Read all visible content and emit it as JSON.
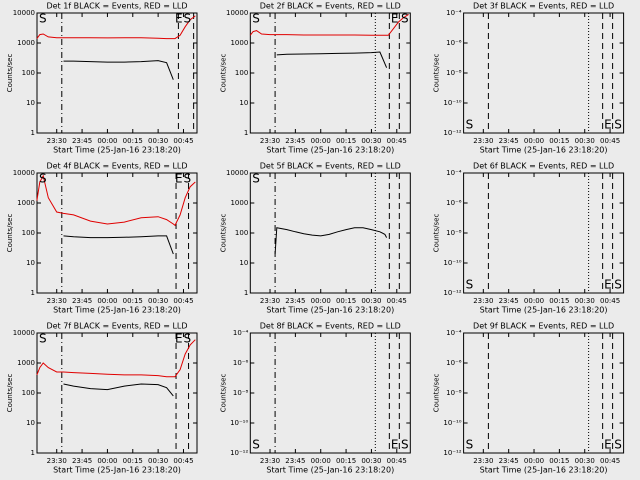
{
  "chart_data": [
    {
      "type": "line",
      "title": "Det 1f BLACK = Events, RED = LLD",
      "ylabel": "Counts/sec",
      "xlabel": "Start Time (25-Jan-16 23:18:20)",
      "log_scale": true,
      "x": [
        18.3,
        20,
        22,
        25,
        30,
        34,
        40,
        50,
        60,
        70,
        80,
        90,
        95,
        99,
        100,
        103,
        106,
        109,
        112
      ],
      "series": [
        {
          "name": "RED",
          "color": "#e00000",
          "values": [
            1400,
            1900,
            2000,
            1600,
            1500,
            1500,
            1500,
            1500,
            1480,
            1500,
            1500,
            1450,
            1400,
            1400,
            1400,
            1800,
            3500,
            6000,
            8000
          ]
        },
        {
          "name": "BLACK",
          "color": "#000000",
          "values": [
            null,
            null,
            null,
            null,
            null,
            250,
            250,
            240,
            230,
            230,
            240,
            260,
            220,
            60,
            null,
            null,
            null,
            null,
            null
          ]
        }
      ],
      "markers": [
        {
          "x": 33,
          "style": "dashdot"
        },
        {
          "x": 102,
          "style": "dashed"
        },
        {
          "x": 111,
          "style": "dashed"
        }
      ],
      "annotations": [
        {
          "text": "S",
          "x": 19.5
        },
        {
          "text": "E",
          "x": 100
        },
        {
          "text": "S",
          "x": 105
        }
      ],
      "xlim": [
        18.33,
        113
      ],
      "ylim": [
        1,
        10000
      ],
      "yticks": [
        1,
        10,
        100,
        1000,
        10000
      ],
      "xticks": [
        {
          "value": 30,
          "label": "23:30"
        },
        {
          "value": 45,
          "label": "23:45"
        },
        {
          "value": 60,
          "label": "00:00"
        },
        {
          "value": 75,
          "label": "00:15"
        },
        {
          "value": 90,
          "label": "00:30"
        },
        {
          "value": 105,
          "label": "00:45"
        }
      ]
    },
    {
      "type": "line",
      "title": "Det 2f BLACK = Events, RED = LLD",
      "ylabel": "Counts/sec",
      "xlabel": "Start Time (25-Jan-16 23:18:20)",
      "log_scale": true,
      "x": [
        18.3,
        20,
        22,
        25,
        30,
        34,
        40,
        50,
        60,
        70,
        80,
        90,
        95,
        99,
        100,
        103,
        106,
        109,
        112
      ],
      "series": [
        {
          "name": "RED",
          "color": "#e00000",
          "values": [
            1800,
            2400,
            2600,
            2000,
            1900,
            1900,
            1900,
            1850,
            1850,
            1850,
            1850,
            1800,
            1800,
            1800,
            1800,
            3000,
            5000,
            7000,
            9000
          ]
        },
        {
          "name": "BLACK",
          "color": "#000000",
          "values": [
            null,
            null,
            null,
            null,
            null,
            400,
            420,
            430,
            440,
            450,
            460,
            480,
            500,
            150,
            null,
            null,
            null,
            null,
            null
          ]
        }
      ],
      "markers": [
        {
          "x": 33,
          "style": "dashdot"
        },
        {
          "x": 92.3,
          "style": "dotted"
        },
        {
          "x": 100.6,
          "style": "dashed"
        },
        {
          "x": 106.5,
          "style": "dashed"
        }
      ],
      "annotations": [
        {
          "text": "S",
          "x": 19.5
        },
        {
          "text": "E",
          "x": 101.5
        },
        {
          "text": "S",
          "x": 107.5
        }
      ],
      "xlim": [
        18.33,
        113
      ],
      "ylim": [
        1,
        10000
      ],
      "yticks": [
        1,
        10,
        100,
        1000,
        10000
      ],
      "xticks": [
        {
          "value": 30,
          "label": "23:30"
        },
        {
          "value": 45,
          "label": "23:45"
        },
        {
          "value": 60,
          "label": "00:00"
        },
        {
          "value": 75,
          "label": "00:15"
        },
        {
          "value": 90,
          "label": "00:30"
        },
        {
          "value": 105,
          "label": "00:45"
        }
      ]
    },
    {
      "type": "line",
      "title": "Det 3f BLACK = Events, RED = LLD",
      "ylabel": "Counts/sec",
      "xlabel": "Start Time (25-Jan-16 23:18:20)",
      "log_scale": true,
      "x": [],
      "series": [],
      "markers": [
        {
          "x": 33,
          "style": "dashed"
        },
        {
          "x": 92.3,
          "style": "dotted"
        },
        {
          "x": 100.6,
          "style": "dashed"
        },
        {
          "x": 106.5,
          "style": "dashed"
        }
      ],
      "annotations": [
        {
          "text": "S",
          "x": 19.5
        },
        {
          "text": "E",
          "x": 101.5
        },
        {
          "text": "S",
          "x": 107.5
        }
      ],
      "xlim": [
        18.33,
        113
      ],
      "ylim": [
        1e-12,
        0.0001
      ],
      "yticks": [
        {
          "value": 1e-12,
          "label": "10⁻¹²"
        },
        {
          "value": 1e-10,
          "label": "10⁻¹⁰"
        },
        {
          "value": 1e-08,
          "label": "10⁻⁸"
        },
        {
          "value": 1e-06,
          "label": "10⁻⁶"
        },
        {
          "value": 0.0001,
          "label": "10⁻⁴"
        }
      ],
      "xticks": [
        {
          "value": 30,
          "label": "23:30"
        },
        {
          "value": 45,
          "label": "23:45"
        },
        {
          "value": 60,
          "label": "00:00"
        },
        {
          "value": 75,
          "label": "00:15"
        },
        {
          "value": 90,
          "label": "00:30"
        },
        {
          "value": 105,
          "label": "00:45"
        }
      ]
    },
    {
      "type": "line",
      "title": "Det 4f BLACK = Events, RED = LLD",
      "ylabel": "Counts/sec",
      "xlabel": "Start Time (25-Jan-16 23:18:20)",
      "log_scale": true,
      "x": [
        18.3,
        20,
        22,
        25,
        30,
        34,
        40,
        50,
        60,
        70,
        80,
        90,
        95,
        99,
        100,
        103,
        106,
        109,
        112
      ],
      "series": [
        {
          "name": "RED",
          "color": "#e00000",
          "values": [
            1200,
            5000,
            8000,
            1500,
            500,
            450,
            400,
            250,
            200,
            230,
            320,
            350,
            280,
            200,
            180,
            400,
            1500,
            3500,
            5000
          ]
        },
        {
          "name": "BLACK",
          "color": "#000000",
          "values": [
            null,
            null,
            null,
            null,
            null,
            80,
            75,
            70,
            70,
            72,
            75,
            80,
            80,
            20,
            null,
            null,
            null,
            null,
            null
          ]
        }
      ],
      "markers": [
        {
          "x": 33,
          "style": "dashdot"
        },
        {
          "x": 100.6,
          "style": "dashed"
        },
        {
          "x": 108,
          "style": "dashed"
        }
      ],
      "annotations": [
        {
          "text": "S",
          "x": 19.5
        },
        {
          "text": "E",
          "x": 100
        },
        {
          "text": "S",
          "x": 105
        }
      ],
      "xlim": [
        18.33,
        113
      ],
      "ylim": [
        1,
        10000
      ],
      "yticks": [
        1,
        10,
        100,
        1000,
        10000
      ],
      "xticks": [
        {
          "value": 30,
          "label": "23:30"
        },
        {
          "value": 45,
          "label": "23:45"
        },
        {
          "value": 60,
          "label": "00:00"
        },
        {
          "value": 75,
          "label": "00:15"
        },
        {
          "value": 90,
          "label": "00:30"
        },
        {
          "value": 105,
          "label": "00:45"
        }
      ]
    },
    {
      "type": "line",
      "title": "Det 5f BLACK = Events, RED = LLD",
      "ylabel": "Counts/sec",
      "xlabel": "Start Time (25-Jan-16 23:18:20)",
      "log_scale": true,
      "x": [
        33,
        34,
        40,
        45,
        50,
        55,
        60,
        65,
        70,
        75,
        80,
        85,
        90,
        95,
        98,
        99
      ],
      "series": [
        {
          "name": "BLACK",
          "color": "#000000",
          "values": [
            20,
            150,
            130,
            110,
            95,
            85,
            80,
            90,
            110,
            130,
            150,
            150,
            130,
            110,
            90,
            70
          ]
        }
      ],
      "markers": [
        {
          "x": 33,
          "style": "dashdot"
        },
        {
          "x": 92.3,
          "style": "dotted"
        },
        {
          "x": 100.6,
          "style": "dashed"
        },
        {
          "x": 106.5,
          "style": "dashed"
        }
      ],
      "annotations": [
        {
          "text": "S",
          "x": 19.5
        }
      ],
      "xlim": [
        18.33,
        113
      ],
      "ylim": [
        1,
        10000
      ],
      "yticks": [
        1,
        10,
        100,
        1000,
        10000
      ],
      "xticks": [
        {
          "value": 30,
          "label": "23:30"
        },
        {
          "value": 45,
          "label": "23:45"
        },
        {
          "value": 60,
          "label": "00:00"
        },
        {
          "value": 75,
          "label": "00:15"
        },
        {
          "value": 90,
          "label": "00:30"
        },
        {
          "value": 105,
          "label": "00:45"
        }
      ]
    },
    {
      "type": "line",
      "title": "Det 6f BLACK = Events, RED = LLD",
      "ylabel": "Counts/sec",
      "xlabel": "Start Time (25-Jan-16 23:18:20)",
      "log_scale": true,
      "x": [],
      "series": [],
      "markers": [
        {
          "x": 33,
          "style": "dashed"
        },
        {
          "x": 92.3,
          "style": "dotted"
        },
        {
          "x": 100.6,
          "style": "dashed"
        },
        {
          "x": 106.5,
          "style": "dashed"
        }
      ],
      "annotations": [
        {
          "text": "S",
          "x": 19.5
        },
        {
          "text": "E",
          "x": 101.5
        },
        {
          "text": "S",
          "x": 107.5
        }
      ],
      "xlim": [
        18.33,
        113
      ],
      "ylim": [
        1e-12,
        0.0001
      ],
      "yticks": [
        {
          "value": 1e-12,
          "label": "10⁻¹²"
        },
        {
          "value": 1e-10,
          "label": "10⁻¹⁰"
        },
        {
          "value": 1e-08,
          "label": "10⁻⁸"
        },
        {
          "value": 1e-06,
          "label": "10⁻⁶"
        },
        {
          "value": 0.0001,
          "label": "10⁻⁴"
        }
      ],
      "xticks": [
        {
          "value": 30,
          "label": "23:30"
        },
        {
          "value": 45,
          "label": "23:45"
        },
        {
          "value": 60,
          "label": "00:00"
        },
        {
          "value": 75,
          "label": "00:15"
        },
        {
          "value": 90,
          "label": "00:30"
        },
        {
          "value": 105,
          "label": "00:45"
        }
      ]
    },
    {
      "type": "line",
      "title": "Det 7f BLACK = Events, RED = LLD",
      "ylabel": "Counts/sec",
      "xlabel": "Start Time (25-Jan-16 23:18:20)",
      "log_scale": true,
      "x": [
        18.3,
        20,
        22,
        25,
        30,
        34,
        40,
        50,
        60,
        70,
        80,
        90,
        95,
        99,
        100,
        103,
        106,
        109,
        112
      ],
      "series": [
        {
          "name": "RED",
          "color": "#e00000",
          "values": [
            400,
            700,
            1000,
            700,
            500,
            500,
            480,
            450,
            420,
            400,
            400,
            380,
            350,
            350,
            350,
            600,
            2000,
            4000,
            6000
          ]
        },
        {
          "name": "BLACK",
          "color": "#000000",
          "values": [
            null,
            null,
            null,
            null,
            null,
            200,
            170,
            140,
            130,
            170,
            200,
            190,
            150,
            80,
            null,
            null,
            null,
            null,
            null
          ]
        }
      ],
      "markers": [
        {
          "x": 33,
          "style": "dashdot"
        },
        {
          "x": 100.6,
          "style": "dashed"
        },
        {
          "x": 108,
          "style": "dashed"
        }
      ],
      "annotations": [
        {
          "text": "S",
          "x": 19.5
        },
        {
          "text": "E",
          "x": 100
        },
        {
          "text": "S",
          "x": 105
        }
      ],
      "xlim": [
        18.33,
        113
      ],
      "ylim": [
        1,
        10000
      ],
      "yticks": [
        1,
        10,
        100,
        1000,
        10000
      ],
      "xticks": [
        {
          "value": 30,
          "label": "23:30"
        },
        {
          "value": 45,
          "label": "23:45"
        },
        {
          "value": 60,
          "label": "00:00"
        },
        {
          "value": 75,
          "label": "00:15"
        },
        {
          "value": 90,
          "label": "00:30"
        },
        {
          "value": 105,
          "label": "00:45"
        }
      ]
    },
    {
      "type": "line",
      "title": "Det 8f BLACK = Events, RED = LLD",
      "ylabel": "Counts/sec",
      "xlabel": "Start Time (25-Jan-16 23:18:20)",
      "log_scale": true,
      "x": [],
      "series": [],
      "markers": [
        {
          "x": 33,
          "style": "dashdot"
        },
        {
          "x": 92.3,
          "style": "dotted"
        },
        {
          "x": 100.6,
          "style": "dashed"
        },
        {
          "x": 106.5,
          "style": "dashed"
        }
      ],
      "annotations": [
        {
          "text": "S",
          "x": 19.5
        },
        {
          "text": "E",
          "x": 101.5
        },
        {
          "text": "S",
          "x": 107.5
        }
      ],
      "xlim": [
        18.33,
        113
      ],
      "ylim": [
        1e-12,
        0.0001
      ],
      "yticks": [
        {
          "value": 1e-12,
          "label": "10⁻¹²"
        },
        {
          "value": 1e-10,
          "label": "10⁻¹⁰"
        },
        {
          "value": 1e-08,
          "label": "10⁻⁸"
        },
        {
          "value": 1e-06,
          "label": "10⁻⁶"
        },
        {
          "value": 0.0001,
          "label": "10⁻⁴"
        }
      ],
      "xticks": [
        {
          "value": 30,
          "label": "23:30"
        },
        {
          "value": 45,
          "label": "23:45"
        },
        {
          "value": 60,
          "label": "00:00"
        },
        {
          "value": 75,
          "label": "00:15"
        },
        {
          "value": 90,
          "label": "00:30"
        },
        {
          "value": 105,
          "label": "00:45"
        }
      ]
    },
    {
      "type": "line",
      "title": "Det 9f BLACK = Events, RED = LLD",
      "ylabel": "Counts/sec",
      "xlabel": "Start Time (25-Jan-16 23:18:20)",
      "log_scale": true,
      "x": [],
      "series": [],
      "markers": [
        {
          "x": 33,
          "style": "dashed"
        },
        {
          "x": 92.3,
          "style": "dotted"
        },
        {
          "x": 100.6,
          "style": "dashed"
        },
        {
          "x": 106.5,
          "style": "dashed"
        }
      ],
      "annotations": [
        {
          "text": "S",
          "x": 19.5
        },
        {
          "text": "E",
          "x": 101.5
        },
        {
          "text": "S",
          "x": 107.5
        }
      ],
      "xlim": [
        18.33,
        113
      ],
      "ylim": [
        1e-12,
        0.0001
      ],
      "yticks": [
        {
          "value": 1e-12,
          "label": "10⁻¹²"
        },
        {
          "value": 1e-10,
          "label": "10⁻¹⁰"
        },
        {
          "value": 1e-08,
          "label": "10⁻⁸"
        },
        {
          "value": 1e-06,
          "label": "10⁻⁶"
        },
        {
          "value": 0.0001,
          "label": "10⁻⁴"
        }
      ],
      "xticks": [
        {
          "value": 30,
          "label": "23:30"
        },
        {
          "value": 45,
          "label": "23:45"
        },
        {
          "value": 60,
          "label": "00:00"
        },
        {
          "value": 75,
          "label": "00:15"
        },
        {
          "value": 90,
          "label": "00:30"
        },
        {
          "value": 105,
          "label": "00:45"
        }
      ]
    }
  ]
}
